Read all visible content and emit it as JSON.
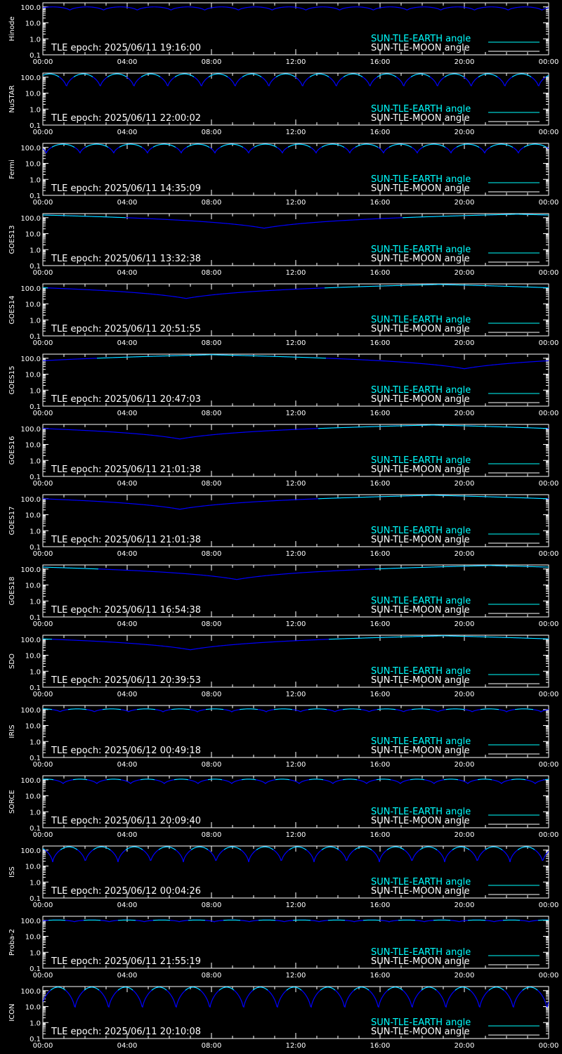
{
  "colors": {
    "background": "#000000",
    "axes": "#ffffff",
    "earth_curve": "#0000ff",
    "earth_legend": "#00ffff",
    "earth_curve_top": "#00ffff",
    "moon_curve": "#ffffff"
  },
  "legend": {
    "earth_label": "SUN-TLE-EARTH angle",
    "moon_label": "SUN-TLE-MOON angle"
  },
  "chart_data": [
    {
      "type": "line",
      "ylabel": "Hinode",
      "epoch": "TLE epoch: 2025/06/11 19:16:00",
      "x_ticks": [
        "00:00",
        "04:00",
        "08:00",
        "12:00",
        "16:00",
        "20:00",
        "00:00"
      ],
      "y_ticks": [
        "0.1",
        "1.0",
        "10.0",
        "100.0"
      ],
      "ylim": [
        0.1,
        180
      ],
      "yscale": "log",
      "earth_curve": {
        "kind": "orbit",
        "period_hours": 1.6,
        "max_deg": 100,
        "min_deg": 60,
        "phase": 0.2
      }
    },
    {
      "type": "line",
      "ylabel": "NuSTAR",
      "epoch": "TLE epoch: 2025/06/11 22:00:02",
      "x_ticks": [
        "00:00",
        "04:00",
        "08:00",
        "12:00",
        "16:00",
        "20:00",
        "00:00"
      ],
      "y_ticks": [
        "0.1",
        "1.0",
        "10.0",
        "100.0"
      ],
      "ylim": [
        0.1,
        180
      ],
      "yscale": "log",
      "earth_curve": {
        "kind": "orbit",
        "period_hours": 1.6,
        "max_deg": 160,
        "min_deg": 22,
        "phase": 0.3
      }
    },
    {
      "type": "line",
      "ylabel": "Fermi",
      "epoch": "TLE epoch: 2025/06/11 14:35:09",
      "x_ticks": [
        "00:00",
        "04:00",
        "08:00",
        "12:00",
        "16:00",
        "20:00",
        "00:00"
      ],
      "y_ticks": [
        "0.1",
        "1.0",
        "10.0",
        "100.0"
      ],
      "ylim": [
        0.1,
        180
      ],
      "yscale": "log",
      "earth_curve": {
        "kind": "orbit",
        "period_hours": 1.6,
        "max_deg": 160,
        "min_deg": 40,
        "phase": 0.9
      }
    },
    {
      "type": "line",
      "ylabel": "GOES13",
      "epoch": "TLE epoch: 2025/06/11 13:32:38",
      "x_ticks": [
        "00:00",
        "04:00",
        "08:00",
        "12:00",
        "16:00",
        "20:00",
        "00:00"
      ],
      "y_ticks": [
        "0.1",
        "1.0",
        "10.0",
        "100.0"
      ],
      "ylim": [
        0.1,
        180
      ],
      "yscale": "log",
      "earth_curve": {
        "kind": "geo",
        "min_hour": 10.5,
        "max_deg": 165,
        "min_deg": 22
      }
    },
    {
      "type": "line",
      "ylabel": "GOES14",
      "epoch": "TLE epoch: 2025/06/11 20:51:55",
      "x_ticks": [
        "00:00",
        "04:00",
        "08:00",
        "12:00",
        "16:00",
        "20:00",
        "00:00"
      ],
      "y_ticks": [
        "0.1",
        "1.0",
        "10.0",
        "100.0"
      ],
      "ylim": [
        0.1,
        180
      ],
      "yscale": "log",
      "earth_curve": {
        "kind": "geo",
        "min_hour": 6.8,
        "max_deg": 165,
        "min_deg": 22
      }
    },
    {
      "type": "line",
      "ylabel": "GOES15",
      "epoch": "TLE epoch: 2025/06/11 20:47:03",
      "x_ticks": [
        "00:00",
        "04:00",
        "08:00",
        "12:00",
        "16:00",
        "20:00",
        "00:00"
      ],
      "y_ticks": [
        "0.1",
        "1.0",
        "10.0",
        "100.0"
      ],
      "ylim": [
        0.1,
        180
      ],
      "yscale": "log",
      "earth_curve": {
        "kind": "geo",
        "min_hour": 20.0,
        "max_deg": 165,
        "min_deg": 22
      }
    },
    {
      "type": "line",
      "ylabel": "GOES16",
      "epoch": "TLE epoch: 2025/06/11 21:01:38",
      "x_ticks": [
        "00:00",
        "04:00",
        "08:00",
        "12:00",
        "16:00",
        "20:00",
        "00:00"
      ],
      "y_ticks": [
        "0.1",
        "1.0",
        "10.0",
        "100.0"
      ],
      "ylim": [
        0.1,
        180
      ],
      "yscale": "log",
      "earth_curve": {
        "kind": "geo",
        "min_hour": 6.5,
        "max_deg": 165,
        "min_deg": 22
      }
    },
    {
      "type": "line",
      "ylabel": "GOES17",
      "epoch": "TLE epoch: 2025/06/11 21:01:38",
      "x_ticks": [
        "00:00",
        "04:00",
        "08:00",
        "12:00",
        "16:00",
        "20:00",
        "00:00"
      ],
      "y_ticks": [
        "0.1",
        "1.0",
        "10.0",
        "100.0"
      ],
      "ylim": [
        0.1,
        180
      ],
      "yscale": "log",
      "earth_curve": {
        "kind": "geo",
        "min_hour": 6.5,
        "max_deg": 165,
        "min_deg": 22
      }
    },
    {
      "type": "line",
      "ylabel": "GOES18",
      "epoch": "TLE epoch: 2025/06/11 16:54:38",
      "x_ticks": [
        "00:00",
        "04:00",
        "08:00",
        "12:00",
        "16:00",
        "20:00",
        "00:00"
      ],
      "y_ticks": [
        "0.1",
        "1.0",
        "10.0",
        "100.0"
      ],
      "ylim": [
        0.1,
        180
      ],
      "yscale": "log",
      "earth_curve": {
        "kind": "geo",
        "min_hour": 9.2,
        "max_deg": 165,
        "min_deg": 22
      }
    },
    {
      "type": "line",
      "ylabel": "SDO",
      "epoch": "TLE epoch: 2025/06/11 20:39:53",
      "x_ticks": [
        "00:00",
        "04:00",
        "08:00",
        "12:00",
        "16:00",
        "20:00",
        "00:00"
      ],
      "y_ticks": [
        "0.1",
        "1.0",
        "10.0",
        "100.0"
      ],
      "ylim": [
        0.1,
        180
      ],
      "yscale": "log",
      "earth_curve": {
        "kind": "geo",
        "min_hour": 7.0,
        "max_deg": 165,
        "min_deg": 22
      }
    },
    {
      "type": "line",
      "ylabel": "IRIS",
      "epoch": "TLE epoch: 2025/06/12 00:49:18",
      "x_ticks": [
        "00:00",
        "04:00",
        "08:00",
        "12:00",
        "16:00",
        "20:00",
        "00:00"
      ],
      "y_ticks": [
        "0.1",
        "1.0",
        "10.0",
        "100.0"
      ],
      "ylim": [
        0.1,
        180
      ],
      "yscale": "log",
      "earth_curve": {
        "kind": "orbit",
        "period_hours": 1.63,
        "max_deg": 110,
        "min_deg": 70,
        "phase": 0.5
      }
    },
    {
      "type": "line",
      "ylabel": "SORCE",
      "epoch": "TLE epoch: 2025/06/11 20:09:40",
      "x_ticks": [
        "00:00",
        "04:00",
        "08:00",
        "12:00",
        "16:00",
        "20:00",
        "00:00"
      ],
      "y_ticks": [
        "0.1",
        "1.0",
        "10.0",
        "100.0"
      ],
      "ylim": [
        0.1,
        180
      ],
      "yscale": "log",
      "earth_curve": {
        "kind": "orbit",
        "period_hours": 1.6,
        "max_deg": 110,
        "min_deg": 55,
        "phase": 0.4
      }
    },
    {
      "type": "line",
      "ylabel": "ISS",
      "epoch": "TLE epoch: 2025/06/12 00:04:26",
      "x_ticks": [
        "00:00",
        "04:00",
        "08:00",
        "12:00",
        "16:00",
        "20:00",
        "00:00"
      ],
      "y_ticks": [
        "0.1",
        "1.0",
        "10.0",
        "100.0"
      ],
      "ylim": [
        0.1,
        180
      ],
      "yscale": "log",
      "earth_curve": {
        "kind": "orbit",
        "period_hours": 1.55,
        "max_deg": 160,
        "min_deg": 16,
        "phase": 0.7
      }
    },
    {
      "type": "line",
      "ylabel": "Proba-2",
      "epoch": "TLE epoch: 2025/06/11 21:55:19",
      "x_ticks": [
        "00:00",
        "04:00",
        "08:00",
        "12:00",
        "16:00",
        "20:00",
        "00:00"
      ],
      "y_ticks": [
        "0.1",
        "1.0",
        "10.0",
        "100.0"
      ],
      "ylim": [
        0.1,
        180
      ],
      "yscale": "log",
      "earth_curve": {
        "kind": "orbit",
        "period_hours": 1.66,
        "max_deg": 105,
        "min_deg": 80,
        "phase": 0.1
      }
    },
    {
      "type": "line",
      "ylabel": "ICON",
      "epoch": "TLE epoch: 2025/06/11 20:10:08",
      "x_ticks": [
        "00:00",
        "04:00",
        "08:00",
        "12:00",
        "16:00",
        "20:00",
        "00:00"
      ],
      "y_ticks": [
        "0.1",
        "1.0",
        "10.0",
        "100.0"
      ],
      "ylim": [
        0.1,
        180
      ],
      "yscale": "log",
      "earth_curve": {
        "kind": "orbit",
        "period_hours": 1.6,
        "max_deg": 165,
        "min_deg": 6,
        "phase": 0.05
      }
    }
  ]
}
